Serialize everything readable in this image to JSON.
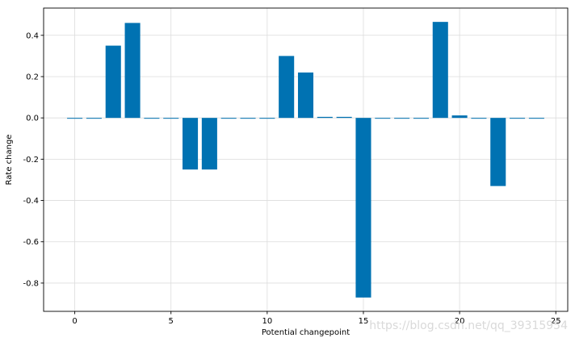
{
  "chart_data": {
    "type": "bar",
    "title": "",
    "xlabel": "Potential changepoint",
    "ylabel": "Rate change",
    "x": [
      0,
      1,
      2,
      3,
      4,
      5,
      6,
      7,
      8,
      9,
      10,
      11,
      12,
      13,
      14,
      15,
      16,
      17,
      18,
      19,
      20,
      21,
      22,
      23,
      24
    ],
    "values": [
      -0.003,
      -0.003,
      0.35,
      0.46,
      -0.003,
      -0.003,
      -0.25,
      -0.25,
      -0.003,
      -0.003,
      -0.003,
      0.3,
      0.22,
      0.005,
      0.005,
      -0.87,
      -0.003,
      -0.003,
      -0.003,
      0.465,
      0.012,
      -0.003,
      -0.33,
      -0.003,
      -0.003
    ],
    "xticks": [
      0,
      5,
      10,
      15,
      20,
      25
    ],
    "yticks": [
      -0.8,
      -0.6,
      -0.4,
      -0.2,
      0.0,
      0.2,
      0.4
    ],
    "xlim": [
      -1.62,
      25.62
    ],
    "ylim": [
      -0.937,
      0.532
    ],
    "grid": true,
    "bar_color": "#0072b2"
  },
  "watermark": "https://blog.csdn.net/qq_39315954"
}
